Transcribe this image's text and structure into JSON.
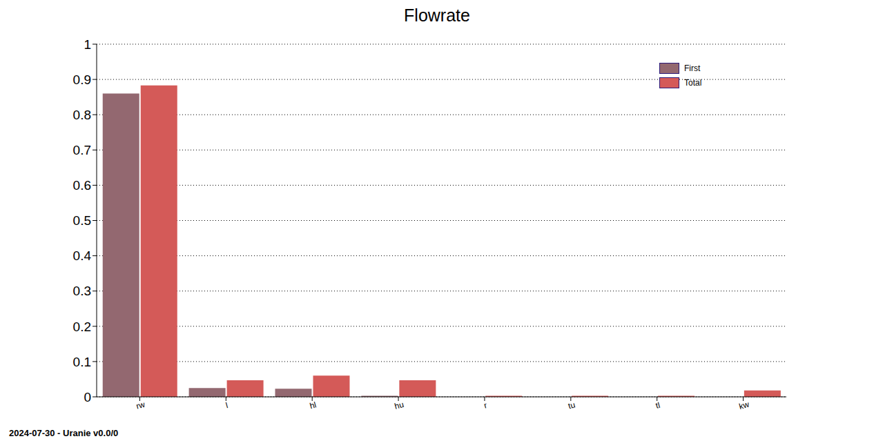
{
  "chart_data": {
    "type": "bar",
    "title": "Flowrate",
    "annotation": "2024-07-30 - Uranie v0.0/0",
    "categories": [
      "rw",
      "l",
      "hl",
      "hu",
      "r",
      "tu",
      "tl",
      "kw"
    ],
    "series": [
      {
        "name": "First",
        "color": "#936870",
        "values": [
          0.86,
          0.025,
          0.023,
          0.003,
          0.0,
          0.0,
          0.0,
          0.0
        ]
      },
      {
        "name": "Total",
        "color": "#d45a58",
        "values": [
          0.883,
          0.047,
          0.06,
          0.047,
          0.003,
          0.003,
          0.003,
          0.018
        ]
      }
    ],
    "ylim": [
      0,
      1
    ],
    "yticks": [
      0,
      0.1,
      0.2,
      0.3,
      0.4,
      0.5,
      0.6,
      0.7,
      0.8,
      0.9,
      1
    ],
    "grid": true,
    "legend": "upper right"
  }
}
